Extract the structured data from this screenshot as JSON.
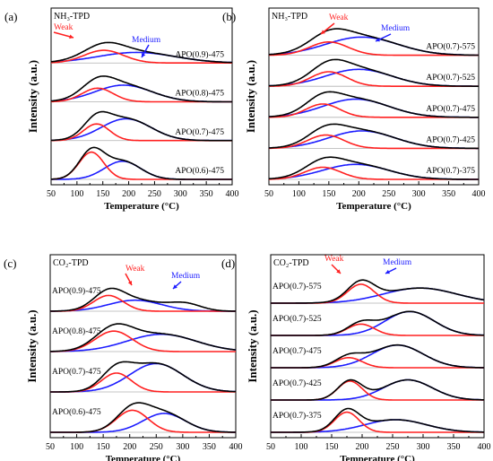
{
  "figure": {
    "x_axis_label": "Temperature (°C)",
    "y_axis_label": "Intensity (a.u.)"
  },
  "colors": {
    "envelope": "#000000",
    "weak": "#ff2020",
    "medium": "#1c1cff",
    "baseline": "#b0b0b0"
  },
  "chart_data": [
    {
      "panel": "(a)",
      "type": "line",
      "title": "NH₃-TPD",
      "xlabel": "Temperature (°C)",
      "ylabel": "Intensity (a.u.)",
      "xlim": [
        50,
        400
      ],
      "xticks": [
        50,
        100,
        150,
        200,
        250,
        300,
        350,
        400
      ],
      "annotations": {
        "weak": "Weak",
        "medium": "Medium"
      },
      "grid": false,
      "traces": [
        {
          "label": "APO(0.9)-475",
          "weak": {
            "center": 152,
            "width": 38,
            "height": 0.42
          },
          "medium": {
            "center": 215,
            "width": 75,
            "height": 0.35
          },
          "baseline": 0.05
        },
        {
          "label": "APO(0.8)-475",
          "weak": {
            "center": 140,
            "width": 30,
            "height": 0.45
          },
          "medium": {
            "center": 190,
            "width": 55,
            "height": 0.55
          },
          "baseline": 0.03
        },
        {
          "label": "APO(0.7)-475",
          "weak": {
            "center": 138,
            "width": 25,
            "height": 0.55
          },
          "medium": {
            "center": 195,
            "width": 48,
            "height": 0.72
          },
          "baseline": 0.02
        },
        {
          "label": "APO(0.6)-475",
          "weak": {
            "center": 128,
            "width": 24,
            "height": 0.9
          },
          "medium": {
            "center": 188,
            "width": 35,
            "height": 0.6
          },
          "baseline": 0.0
        }
      ]
    },
    {
      "panel": "(b)",
      "type": "line",
      "title": "NH₃-TPD",
      "xlabel": "Temperature (°C)",
      "ylabel": "Intensity (a.u.)",
      "xlim": [
        50,
        400
      ],
      "xticks": [
        50,
        100,
        150,
        200,
        250,
        300,
        350,
        400
      ],
      "annotations": {
        "weak": "Weak",
        "medium": "Medium"
      },
      "grid": false,
      "traces": [
        {
          "label": "APO(0.7)-575",
          "weak": {
            "center": 150,
            "width": 32,
            "height": 0.55
          },
          "medium": {
            "center": 205,
            "width": 60,
            "height": 0.75
          },
          "baseline": 0.0
        },
        {
          "label": "APO(0.7)-525",
          "weak": {
            "center": 150,
            "width": 30,
            "height": 0.6
          },
          "medium": {
            "center": 200,
            "width": 55,
            "height": 0.7
          },
          "baseline": 0.0
        },
        {
          "label": "APO(0.7)-475",
          "weak": {
            "center": 140,
            "width": 28,
            "height": 0.55
          },
          "medium": {
            "center": 195,
            "width": 55,
            "height": 0.75
          },
          "baseline": 0.0
        },
        {
          "label": "APO(0.7)-425",
          "weak": {
            "center": 145,
            "width": 30,
            "height": 0.55
          },
          "medium": {
            "center": 205,
            "width": 55,
            "height": 0.72
          },
          "baseline": 0.0
        },
        {
          "label": "APO(0.7)-375",
          "weak": {
            "center": 140,
            "width": 30,
            "height": 0.5
          },
          "medium": {
            "center": 195,
            "width": 55,
            "height": 0.62
          },
          "baseline": 0.0
        }
      ]
    },
    {
      "panel": "(c)",
      "type": "line",
      "title": "CO₂-TPD",
      "xlabel": "Temperature (°C)",
      "ylabel": "Intensity (a.u.)",
      "xlim": [
        50,
        400
      ],
      "xticks": [
        50,
        100,
        150,
        200,
        250,
        300,
        350,
        400
      ],
      "annotations": {
        "weak": "Weak",
        "medium": "Medium"
      },
      "grid": false,
      "traces": [
        {
          "label": "APO(0.9)-475",
          "weak": {
            "center": 160,
            "width": 28,
            "height": 0.5
          },
          "medium": {
            "center": 210,
            "width": 50,
            "height": 0.35
          },
          "extra": {
            "center": 305,
            "width": 30,
            "height": 0.22
          },
          "baseline": 0.0
        },
        {
          "label": "APO(0.8)-475",
          "weak": {
            "center": 170,
            "width": 35,
            "height": 0.65
          },
          "medium": {
            "center": 260,
            "width": 65,
            "height": 0.55
          },
          "baseline": 0.0
        },
        {
          "label": "APO(0.7)-475",
          "weak": {
            "center": 175,
            "width": 28,
            "height": 0.6
          },
          "medium": {
            "center": 250,
            "width": 50,
            "height": 0.9
          },
          "baseline": 0.0
        },
        {
          "label": "APO(0.6)-475",
          "weak": {
            "center": 205,
            "width": 30,
            "height": 0.7
          },
          "medium": {
            "center": 265,
            "width": 40,
            "height": 0.6
          },
          "baseline": 0.0
        }
      ]
    },
    {
      "panel": "(d)",
      "type": "line",
      "title": "CO₂-TPD",
      "xlabel": "Temperature (°C)",
      "ylabel": "Intensity (a.u.)",
      "xlim": [
        50,
        400
      ],
      "xticks": [
        50,
        100,
        150,
        200,
        250,
        300,
        350,
        400
      ],
      "annotations": {
        "weak": "Weak",
        "medium": "Medium"
      },
      "grid": false,
      "traces": [
        {
          "label": "APO(0.7)-575",
          "weak": {
            "center": 198,
            "width": 22,
            "height": 0.75
          },
          "medium": {
            "center": 295,
            "width": 60,
            "height": 0.6
          },
          "baseline": 0.0
        },
        {
          "label": "APO(0.7)-525",
          "weak": {
            "center": 198,
            "width": 22,
            "height": 0.45
          },
          "medium": {
            "center": 278,
            "width": 40,
            "height": 0.95
          },
          "baseline": 0.0
        },
        {
          "label": "APO(0.7)-475",
          "weak": {
            "center": 178,
            "width": 22,
            "height": 0.4
          },
          "medium": {
            "center": 258,
            "width": 42,
            "height": 0.9
          },
          "baseline": 0.0
        },
        {
          "label": "APO(0.7)-425",
          "weak": {
            "center": 180,
            "width": 20,
            "height": 0.75
          },
          "medium": {
            "center": 275,
            "width": 40,
            "height": 0.8
          },
          "baseline": 0.0
        },
        {
          "label": "APO(0.7)-375",
          "weak": {
            "center": 175,
            "width": 20,
            "height": 0.8
          },
          "medium": {
            "center": 255,
            "width": 50,
            "height": 0.5
          },
          "baseline": 0.0
        }
      ]
    }
  ]
}
